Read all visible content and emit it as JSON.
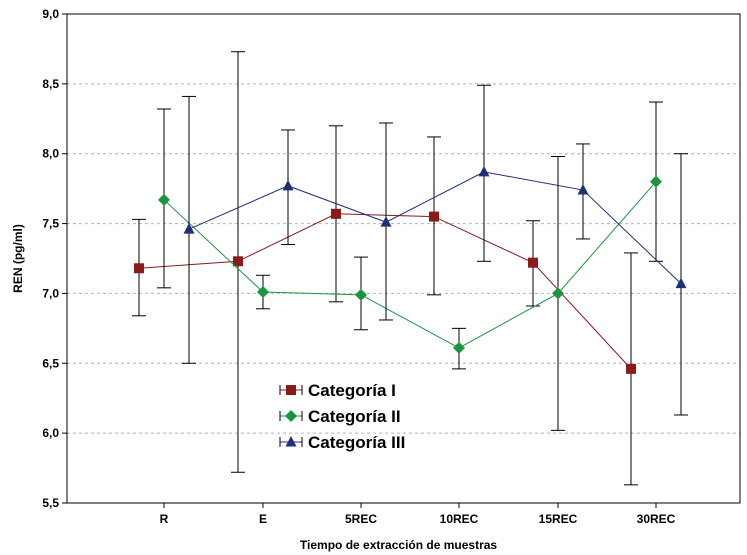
{
  "chart_data": {
    "type": "line",
    "title": "",
    "xlabel": "Tiempo de extracción de muestras",
    "ylabel": "REN (pg/ml)",
    "categories": [
      "R",
      "E",
      "5REC",
      "10REC",
      "15REC",
      "30REC"
    ],
    "ylim": [
      5.5,
      9.0
    ],
    "yticks": [
      5.5,
      6.0,
      6.5,
      7.0,
      7.5,
      8.0,
      8.5,
      9.0
    ],
    "ytick_labels": [
      "5,5",
      "6,0",
      "6,5",
      "7,0",
      "7,5",
      "8,0",
      "8,5",
      "9,0"
    ],
    "grid": true,
    "legend_position": "bottom-left",
    "series": [
      {
        "name": "Categoría I",
        "color": "#8b1a1a",
        "marker": "square",
        "values": [
          7.18,
          7.23,
          7.57,
          7.55,
          7.22,
          6.46
        ],
        "error_low": [
          6.84,
          5.72,
          6.94,
          6.99,
          6.91,
          5.63
        ],
        "error_high": [
          7.53,
          8.73,
          8.2,
          8.12,
          7.52,
          7.29
        ]
      },
      {
        "name": "Categoría II",
        "color": "#1a9641",
        "marker": "diamond",
        "values": [
          7.67,
          7.01,
          6.99,
          6.61,
          7.0,
          7.8
        ],
        "error_low": [
          7.04,
          6.89,
          6.74,
          6.46,
          6.02,
          7.23
        ],
        "error_high": [
          8.32,
          7.13,
          7.26,
          6.75,
          7.98,
          8.37
        ]
      },
      {
        "name": "Categoría III",
        "color": "#1f2f7a",
        "marker": "triangle",
        "values": [
          7.46,
          7.77,
          7.51,
          7.87,
          7.74,
          7.07
        ],
        "error_low": [
          6.5,
          7.35,
          6.81,
          7.23,
          7.39,
          6.13
        ],
        "error_high": [
          8.41,
          8.17,
          8.22,
          8.49,
          8.07,
          8.0
        ]
      }
    ]
  }
}
